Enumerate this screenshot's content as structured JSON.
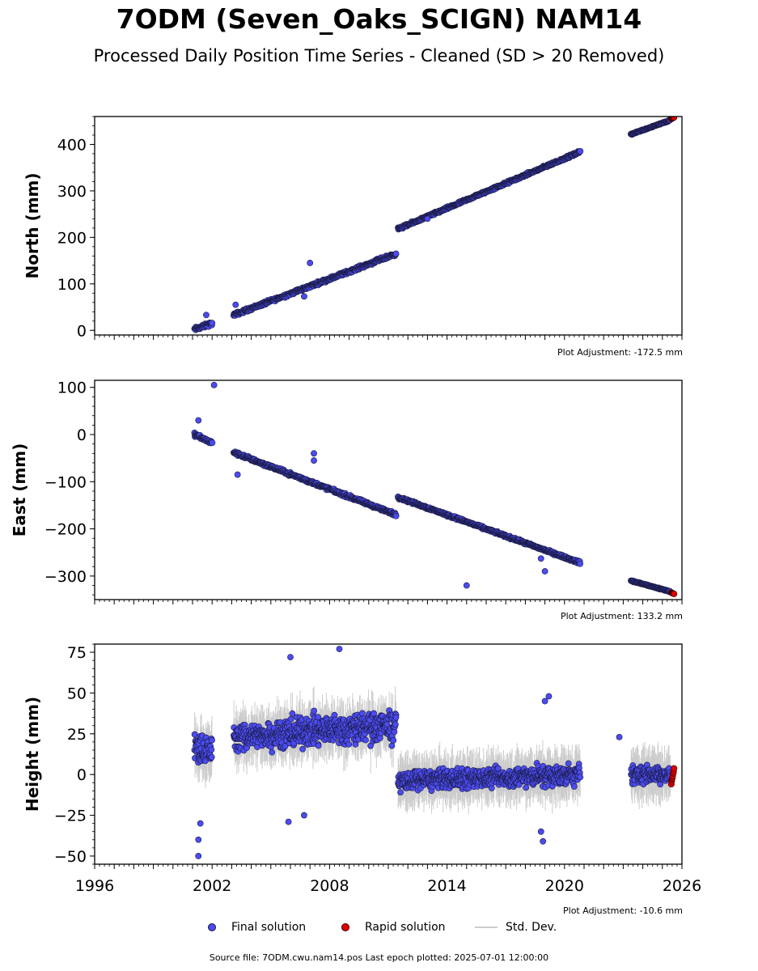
{
  "page": {
    "title": "7ODM (Seven_Oaks_SCIGN) NAM14",
    "subtitle": "Processed Daily Position Time Series - Cleaned (SD > 20 Removed)",
    "source": "Source file: 7ODM.cwu.nam14.pos  Last epoch plotted: 2025-07-01 12:00:00"
  },
  "legend": {
    "final": "Final solution",
    "rapid": "Rapid solution",
    "std": "Std. Dev."
  },
  "colors": {
    "final": "#4b4bf0",
    "final_edge": "#1a1a40",
    "rapid": "#e00000",
    "std": "#cccccc"
  },
  "chart_data": [
    {
      "type": "scatter",
      "ylabel": "North (mm)",
      "adjustment": "Plot Adjustment: -172.5 mm",
      "xlim": [
        1996,
        2026
      ],
      "ylim": [
        -10,
        460
      ],
      "yticks": [
        0,
        100,
        200,
        300,
        400
      ],
      "xticks": [
        1996,
        2002,
        2008,
        2014,
        2020,
        2026
      ],
      "segments": [
        {
          "x": [
            2001.1,
            2002.0
          ],
          "y": [
            2,
            15
          ],
          "spread": 6
        },
        {
          "x": [
            2003.1,
            2011.4
          ],
          "y": [
            33,
            165
          ],
          "spread": 5
        },
        {
          "x": [
            2011.5,
            2020.8
          ],
          "y": [
            218,
            384
          ],
          "spread": 4
        },
        {
          "x": [
            2023.4,
            2025.4
          ],
          "y": [
            422,
            452
          ],
          "spread": 2
        }
      ],
      "rapid": {
        "x": [
          2025.45,
          2025.6
        ],
        "y": [
          455,
          458
        ]
      },
      "outliers": [
        {
          "x": 2001.7,
          "y": 33
        },
        {
          "x": 2003.2,
          "y": 55
        },
        {
          "x": 2006.7,
          "y": 73
        },
        {
          "x": 2007.0,
          "y": 145
        },
        {
          "x": 2013.0,
          "y": 240
        }
      ]
    },
    {
      "type": "scatter",
      "ylabel": "East (mm)",
      "adjustment": "Plot Adjustment: 133.2 mm",
      "xlim": [
        1996,
        2026
      ],
      "ylim": [
        -350,
        115
      ],
      "yticks": [
        100,
        0,
        -100,
        -200,
        -300
      ],
      "xticks": [
        1996,
        2002,
        2008,
        2014,
        2020,
        2026
      ],
      "segments": [
        {
          "x": [
            2001.1,
            2002.0
          ],
          "y": [
            0,
            -18
          ],
          "spread": 6
        },
        {
          "x": [
            2003.1,
            2011.4
          ],
          "y": [
            -38,
            -170
          ],
          "spread": 5
        },
        {
          "x": [
            2011.5,
            2020.8
          ],
          "y": [
            -133,
            -272
          ],
          "spread": 4
        },
        {
          "x": [
            2023.4,
            2025.4
          ],
          "y": [
            -310,
            -333
          ],
          "spread": 2
        }
      ],
      "rapid": {
        "x": [
          2025.45,
          2025.6
        ],
        "y": [
          -335,
          -338
        ]
      },
      "outliers": [
        {
          "x": 2001.3,
          "y": 30
        },
        {
          "x": 2002.1,
          "y": 105
        },
        {
          "x": 2003.3,
          "y": -85
        },
        {
          "x": 2007.2,
          "y": -40
        },
        {
          "x": 2007.2,
          "y": -55
        },
        {
          "x": 2015.0,
          "y": -320
        },
        {
          "x": 2019.0,
          "y": -290
        },
        {
          "x": 2018.8,
          "y": -263
        }
      ]
    },
    {
      "type": "scatter",
      "ylabel": "Height (mm)",
      "adjustment": "Plot Adjustment: -10.6 mm",
      "xlim": [
        1996,
        2026
      ],
      "ylim": [
        -55,
        80
      ],
      "yticks": [
        75,
        50,
        25,
        0,
        -25,
        -50
      ],
      "xticks": [
        1996,
        2002,
        2008,
        2014,
        2020,
        2026
      ],
      "segments": [
        {
          "x": [
            2001.1,
            2002.0
          ],
          "y": [
            15,
            15
          ],
          "spread": 14
        },
        {
          "x": [
            2003.1,
            2005.0
          ],
          "y": [
            22,
            25
          ],
          "spread": 12
        },
        {
          "x": [
            2005.0,
            2011.4
          ],
          "y": [
            25,
            30
          ],
          "spread": 14
        },
        {
          "x": [
            2011.5,
            2020.8
          ],
          "y": [
            -4,
            0
          ],
          "spread": 9
        },
        {
          "x": [
            2023.4,
            2025.4
          ],
          "y": [
            0,
            0
          ],
          "spread": 8
        }
      ],
      "rapid": {
        "x": [
          2025.45,
          2025.6
        ],
        "y": [
          -6,
          4
        ]
      },
      "outliers": [
        {
          "x": 2001.3,
          "y": -50
        },
        {
          "x": 2001.3,
          "y": -40
        },
        {
          "x": 2001.4,
          "y": -30
        },
        {
          "x": 2006.0,
          "y": 72
        },
        {
          "x": 2008.5,
          "y": 77
        },
        {
          "x": 2005.9,
          "y": -29
        },
        {
          "x": 2006.7,
          "y": -25
        },
        {
          "x": 2019.0,
          "y": 45
        },
        {
          "x": 2019.2,
          "y": 48
        },
        {
          "x": 2018.8,
          "y": -35
        },
        {
          "x": 2018.9,
          "y": -41
        },
        {
          "x": 2022.8,
          "y": 23
        }
      ]
    }
  ]
}
